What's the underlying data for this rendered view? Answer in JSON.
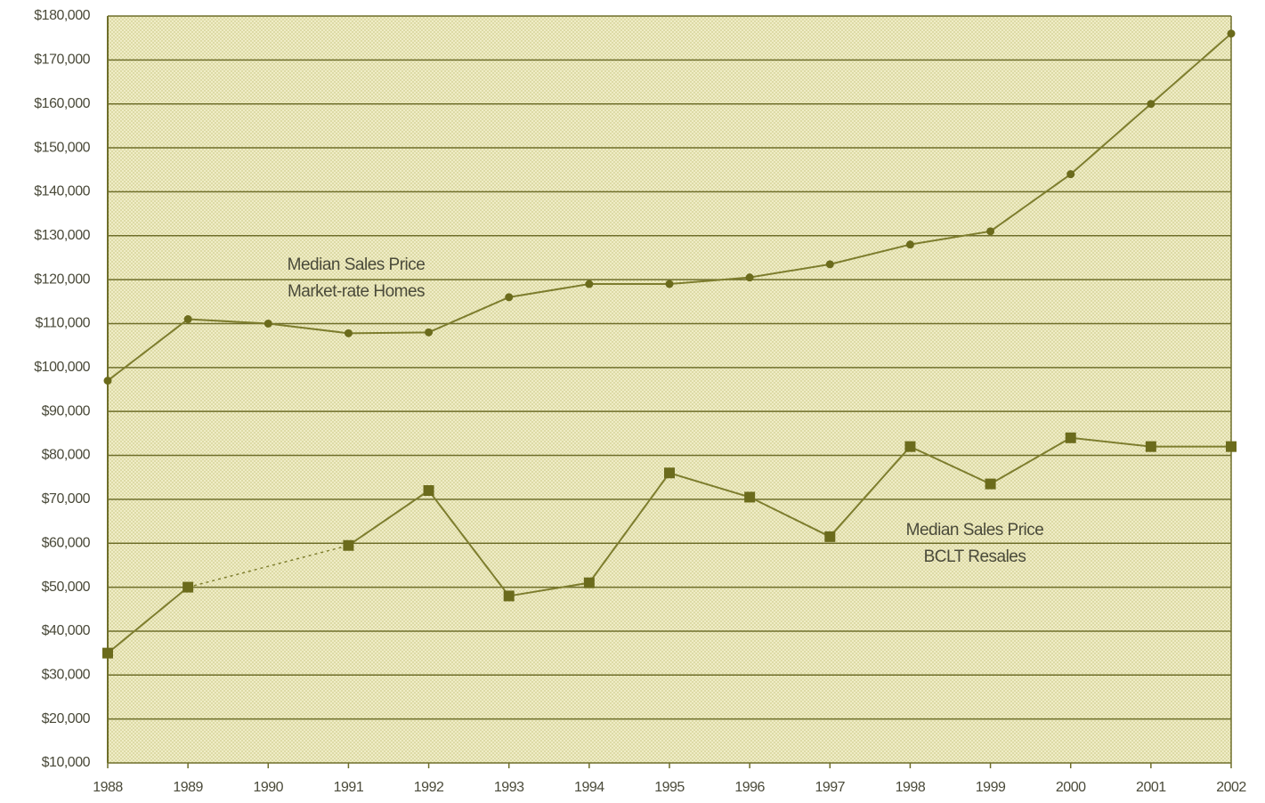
{
  "chart_data": {
    "type": "line",
    "x": [
      1988,
      1989,
      1990,
      1991,
      1992,
      1993,
      1994,
      1995,
      1996,
      1997,
      1998,
      1999,
      2000,
      2001,
      2002
    ],
    "xlim": [
      1988,
      2002
    ],
    "xticks": [
      1988,
      1989,
      1990,
      1991,
      1992,
      1993,
      1994,
      1995,
      1996,
      1997,
      1998,
      1999,
      2000,
      2001,
      2002
    ],
    "ylim": [
      10000,
      180000
    ],
    "yticks": [
      {
        "value": 10000,
        "label": "$10,000"
      },
      {
        "value": 20000,
        "label": "$20,000"
      },
      {
        "value": 30000,
        "label": "$30,000"
      },
      {
        "value": 40000,
        "label": "$40,000"
      },
      {
        "value": 50000,
        "label": "$50,000"
      },
      {
        "value": 60000,
        "label": "$60,000"
      },
      {
        "value": 70000,
        "label": "$70,000"
      },
      {
        "value": 80000,
        "label": "$80,000"
      },
      {
        "value": 90000,
        "label": "$90,000"
      },
      {
        "value": 100000,
        "label": "$100,000"
      },
      {
        "value": 110000,
        "label": "$110,000"
      },
      {
        "value": 120000,
        "label": "$120,000"
      },
      {
        "value": 130000,
        "label": "$130,000"
      },
      {
        "value": 140000,
        "label": "$140,000"
      },
      {
        "value": 150000,
        "label": "$150,000"
      },
      {
        "value": 160000,
        "label": "$160,000"
      },
      {
        "value": 170000,
        "label": "$170,000"
      },
      {
        "value": 180000,
        "label": "$180,000"
      }
    ],
    "grid": true,
    "series": [
      {
        "color": "#7d7d2e",
        "marker": "circle",
        "values": [
          97000,
          111000,
          110000,
          107800,
          108000,
          116000,
          119000,
          119000,
          120500,
          123500,
          128000,
          131000,
          144000,
          160000,
          176000
        ]
      },
      {
        "color": "#7d7d2e",
        "marker": "square",
        "values": [
          35000,
          50000,
          null,
          59500,
          72000,
          48000,
          51000,
          76000,
          70500,
          61500,
          82000,
          73500,
          84000,
          82000,
          82000
        ]
      }
    ],
    "annotations": [
      {
        "lines": [
          "Median Sales Price",
          "Market-rate Homes"
        ]
      },
      {
        "lines": [
          "Median Sales Price",
          "BCLT Resales"
        ]
      }
    ]
  }
}
